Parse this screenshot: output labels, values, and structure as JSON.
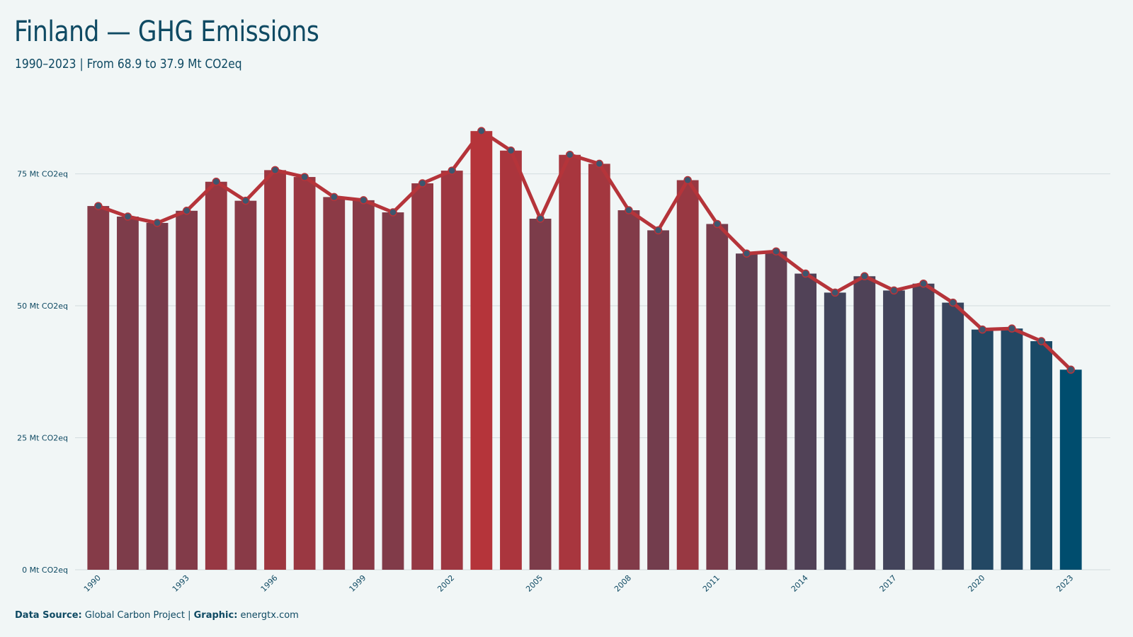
{
  "title": "Finland — GHG Emissions",
  "subtitle": "1990–2023 | From 68.9 to 37.9 Mt CO2eq",
  "footer": {
    "source_label": "Data Source:",
    "source_value": "Global Carbon Project",
    "separator": "|",
    "graphic_label": "Graphic:",
    "graphic_value": "energtx.com"
  },
  "chart_data": {
    "type": "bar",
    "overlay": "line",
    "categories": [
      "1990",
      "1991",
      "1992",
      "1993",
      "1994",
      "1995",
      "1996",
      "1997",
      "1998",
      "1999",
      "2000",
      "2001",
      "2002",
      "2003",
      "2004",
      "2005",
      "2006",
      "2007",
      "2008",
      "2009",
      "2010",
      "2011",
      "2012",
      "2013",
      "2014",
      "2015",
      "2016",
      "2017",
      "2018",
      "2019",
      "2020",
      "2021",
      "2022",
      "2023"
    ],
    "values": [
      68.9,
      66.9,
      65.7,
      68.0,
      73.5,
      69.9,
      75.7,
      74.4,
      70.6,
      70.0,
      67.7,
      73.2,
      75.6,
      83.1,
      79.4,
      66.5,
      78.6,
      76.9,
      68.1,
      64.3,
      73.8,
      65.5,
      59.9,
      60.3,
      56.1,
      52.5,
      55.6,
      52.9,
      54.2,
      50.6,
      45.5,
      45.7,
      43.3,
      37.9
    ],
    "xtick_labels": [
      "1990",
      "1993",
      "1996",
      "1999",
      "2002",
      "2005",
      "2008",
      "2011",
      "2014",
      "2017",
      "2020",
      "2023"
    ],
    "ytick_labels": [
      "0 Mt CO2eq",
      "25 Mt CO2eq",
      "50 Mt CO2eq",
      "75 Mt CO2eq"
    ],
    "yticks": [
      0,
      25,
      50,
      75
    ],
    "ylim": [
      0,
      85
    ],
    "grid": true,
    "colors": {
      "high": "#b5343a",
      "low": "#004d6e",
      "line": "#b5343a",
      "marker": "#3d566e",
      "grid": "#d3dcdf",
      "label": "#0f4a63"
    }
  }
}
